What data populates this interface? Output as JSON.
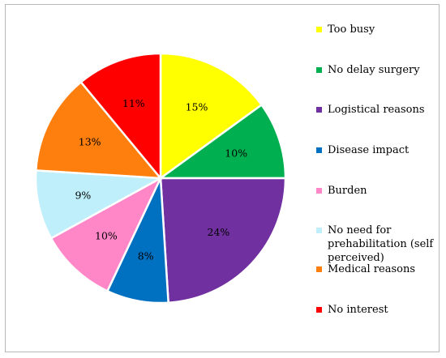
{
  "chart_data": {
    "type": "pie",
    "title": "",
    "slices": [
      {
        "label": "Too busy",
        "value": 15,
        "display": "15%",
        "color": "#FFFF00"
      },
      {
        "label": "No delay surgery",
        "value": 10,
        "display": "10%",
        "color": "#00B050"
      },
      {
        "label": "Logistical reasons",
        "value": 24,
        "display": "24%",
        "color": "#7030A0"
      },
      {
        "label": "Disease impact",
        "value": 8,
        "display": "8%",
        "color": "#0070C0"
      },
      {
        "label": "Burden",
        "value": 10,
        "display": "10%",
        "color": "#FF87C8"
      },
      {
        "label": "No need for prehabilitation (self perceived)",
        "value": 9,
        "display": "9%",
        "color": "#BFEFFA"
      },
      {
        "label": "Medical reasons",
        "value": 13,
        "display": "13%",
        "color": "#FF7F0E"
      },
      {
        "label": "No interest",
        "value": 11,
        "display": "11%",
        "color": "#FF0000"
      }
    ],
    "legend_position": "right"
  }
}
